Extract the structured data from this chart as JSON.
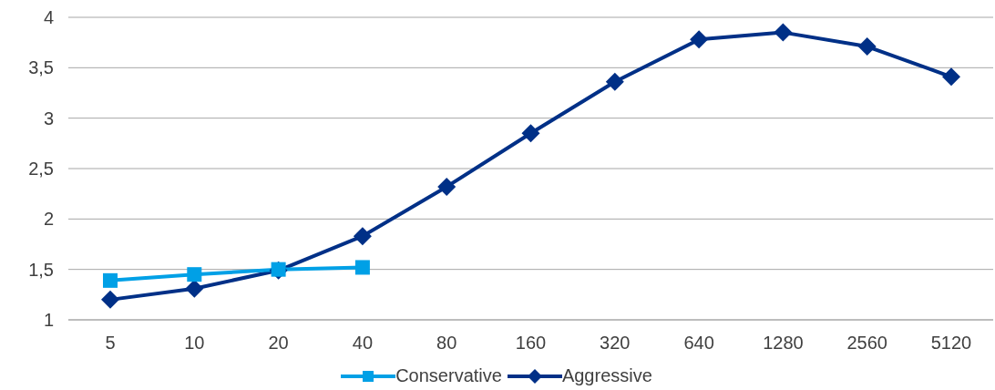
{
  "chart_data": {
    "type": "line",
    "categories": [
      "5",
      "10",
      "20",
      "40",
      "80",
      "160",
      "320",
      "640",
      "1280",
      "2560",
      "5120"
    ],
    "series": [
      {
        "name": "Conservative",
        "color": "#00a0e6",
        "marker": "square",
        "values": [
          1.39,
          1.45,
          1.5,
          1.52,
          null,
          null,
          null,
          null,
          null,
          null,
          null
        ]
      },
      {
        "name": "Aggressive",
        "color": "#003087",
        "marker": "diamond",
        "values": [
          1.2,
          1.31,
          1.49,
          1.83,
          2.32,
          2.85,
          3.36,
          3.78,
          3.85,
          3.71,
          3.41
        ]
      }
    ],
    "ylim": [
      1,
      4
    ],
    "yticks": [
      1,
      {
        "value": 1.5,
        "label": "1,5"
      },
      2,
      {
        "value": 2.5,
        "label": "2,5"
      },
      3,
      {
        "value": 3.5,
        "label": "3,5"
      },
      4
    ],
    "grid": "y",
    "legend": "bottom"
  }
}
